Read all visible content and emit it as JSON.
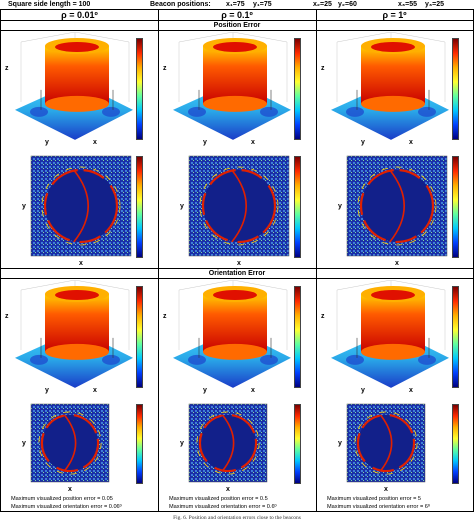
{
  "header": {
    "square_side": "Square side length = 100",
    "beacon_label": "Beacon positions:",
    "beacons": [
      "x₁=75",
      "y₁=75",
      "x₂=25",
      "y₂=60",
      "x₃=55",
      "y₃=25"
    ]
  },
  "columns": [
    "ρ = 0.01º",
    "ρ = 0.1º",
    "ρ = 1º"
  ],
  "sections": {
    "position": "Position Error",
    "orientation": "Orientation Error"
  },
  "axis_labels": {
    "x": "x",
    "y": "y",
    "z": "z"
  },
  "footers": [
    [
      "Maximum visualized position error = 0.05",
      "Maximum visualized orientation error = 0.06º"
    ],
    [
      "Maximum visualized position error = 0.5",
      "Maximum visualized orientation error = 0.6º"
    ],
    [
      "Maximum visualized position error = 5",
      "Maximum visualized orientation error = 6º"
    ]
  ],
  "caption": "Fig. 6.  Position and orientation errors close to the beacons",
  "colors": {
    "border": "#000000",
    "heat_high": "#c80000",
    "heat_low": "#1a3cc8"
  }
}
